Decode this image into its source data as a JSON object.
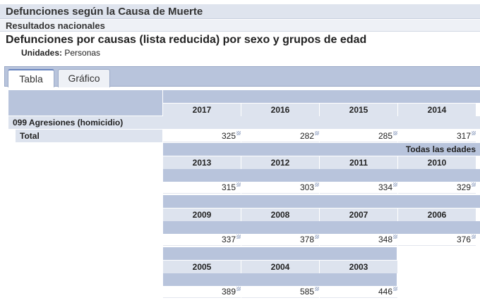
{
  "header": {
    "title": "Defunciones según la Causa de Muerte",
    "subtitle": "Resultados nacionales"
  },
  "table": {
    "title": "Defunciones por causas (lista reducida) por sexo y grupos de edad",
    "units_label": "Unidades:",
    "units_value": "Personas",
    "row_group": "099 Agresiones (homicidio)",
    "row_label": "Total",
    "age_label": "Todas las edades"
  },
  "tabs": [
    {
      "label": "Tabla",
      "active": true
    },
    {
      "label": "Gráfico",
      "active": false
    }
  ],
  "blocks": [
    {
      "years": [
        "2017",
        "2016",
        "2015",
        "2014"
      ],
      "values": [
        "325",
        "282",
        "285",
        "317"
      ]
    },
    {
      "years": [
        "2013",
        "2012",
        "2011",
        "2010"
      ],
      "values": [
        "315",
        "303",
        "334",
        "329"
      ]
    },
    {
      "years": [
        "2009",
        "2008",
        "2007",
        "2006"
      ],
      "values": [
        "337",
        "378",
        "348",
        "376"
      ]
    },
    {
      "years": [
        "2005",
        "2004",
        "2003"
      ],
      "values": [
        "389",
        "585",
        "446"
      ]
    }
  ]
}
